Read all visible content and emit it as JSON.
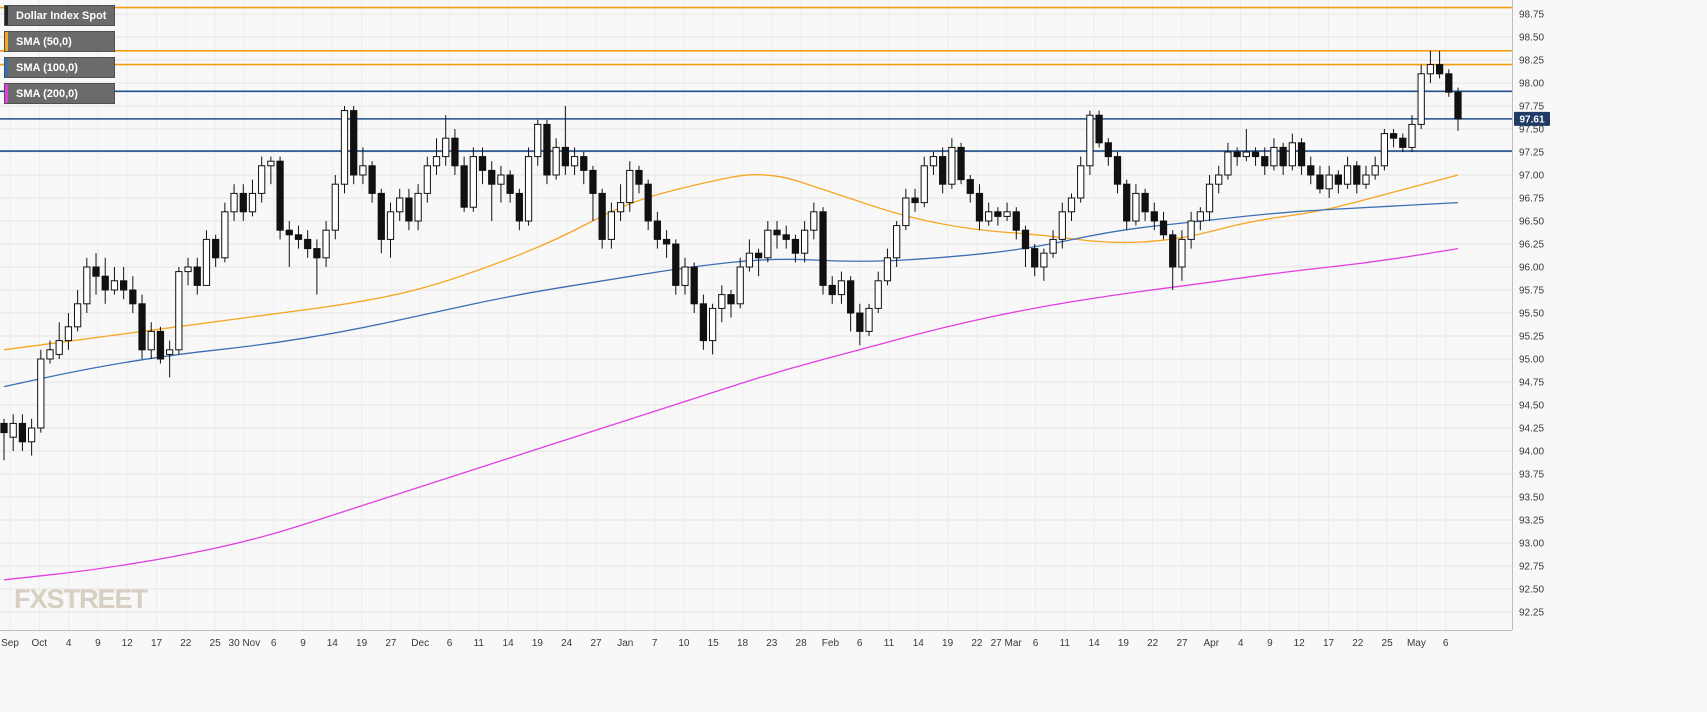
{
  "legend": {
    "items": [
      {
        "label": "Dollar Index Spot",
        "color": "#222222"
      },
      {
        "label": "SMA (50,0)",
        "color": "#f5a623"
      },
      {
        "label": "SMA (100,0)",
        "color": "#3b6fb5"
      },
      {
        "label": "SMA (200,0)",
        "color": "#e040e0"
      }
    ]
  },
  "watermark": "FXSTREET",
  "chart_data": {
    "type": "candlestick",
    "ylim": [
      92.0,
      98.9
    ],
    "y_ticks": [
      92.25,
      92.5,
      92.75,
      93.0,
      93.25,
      93.5,
      93.75,
      94.0,
      94.25,
      94.5,
      94.75,
      95.0,
      95.25,
      95.5,
      95.75,
      96.0,
      96.25,
      96.5,
      96.75,
      97.0,
      97.25,
      97.5,
      97.75,
      98.0,
      98.25,
      98.5,
      98.75
    ],
    "x_tick_labels": [
      "Sep",
      "Oct",
      "4",
      "9",
      "12",
      "17",
      "22",
      "25",
      "30 Nov",
      "6",
      "9",
      "14",
      "19",
      "27",
      "Dec",
      "6",
      "11",
      "14",
      "19",
      "24",
      "27",
      "Jan",
      "7",
      "10",
      "15",
      "18",
      "23",
      "28",
      "Feb",
      "6",
      "11",
      "14",
      "19",
      "22",
      "27 Mar",
      "6",
      "11",
      "14",
      "19",
      "22",
      "27",
      "Apr",
      "4",
      "9",
      "12",
      "17",
      "22",
      "25",
      "May",
      "6"
    ],
    "current_price": "97.61",
    "horizontal_levels": [
      {
        "value": 98.82,
        "color": "#f39c12"
      },
      {
        "value": 98.35,
        "color": "#f39c12"
      },
      {
        "value": 98.2,
        "color": "#f39c12"
      },
      {
        "value": 97.91,
        "color": "#1f4e8c"
      },
      {
        "value": 97.61,
        "color": "#1f4e8c"
      },
      {
        "value": 97.26,
        "color": "#1f4e8c"
      }
    ],
    "sma50": [
      95.1,
      95.2,
      95.3,
      95.4,
      95.5,
      95.6,
      95.75,
      96.0,
      96.3,
      96.7,
      96.9,
      97.05,
      96.8,
      96.55,
      96.4,
      96.35,
      96.25,
      96.3,
      96.5,
      96.6,
      96.8,
      97.0
    ],
    "sma100": [
      94.7,
      94.9,
      95.05,
      95.15,
      95.3,
      95.5,
      95.7,
      95.85,
      96.0,
      96.1,
      96.05,
      96.1,
      96.2,
      96.4,
      96.5,
      96.6,
      96.65,
      96.7
    ],
    "sma200": [
      92.6,
      92.7,
      92.85,
      93.05,
      93.35,
      93.65,
      93.95,
      94.25,
      94.55,
      94.85,
      95.1,
      95.35,
      95.55,
      95.7,
      95.82,
      95.95,
      96.05,
      96.2
    ],
    "candles": [
      [
        94.3,
        94.2,
        94.35,
        93.9
      ],
      [
        94.15,
        94.3,
        94.4,
        94.0
      ],
      [
        94.3,
        94.1,
        94.4,
        94.0
      ],
      [
        94.1,
        94.25,
        94.35,
        93.95
      ],
      [
        94.25,
        95.0,
        95.1,
        94.2
      ],
      [
        95.0,
        95.1,
        95.2,
        94.95
      ],
      [
        95.05,
        95.2,
        95.4,
        95.0
      ],
      [
        95.2,
        95.35,
        95.5,
        95.1
      ],
      [
        95.35,
        95.6,
        95.75,
        95.3
      ],
      [
        95.6,
        96.0,
        96.1,
        95.5
      ],
      [
        96.0,
        95.9,
        96.15,
        95.7
      ],
      [
        95.9,
        95.75,
        96.1,
        95.6
      ],
      [
        95.75,
        95.85,
        96.0,
        95.7
      ],
      [
        95.85,
        95.75,
        96.0,
        95.65
      ],
      [
        95.75,
        95.6,
        95.9,
        95.5
      ],
      [
        95.6,
        95.1,
        95.7,
        95.0
      ],
      [
        95.1,
        95.3,
        95.4,
        95.0
      ],
      [
        95.3,
        95.0,
        95.35,
        94.95
      ],
      [
        95.05,
        95.1,
        95.2,
        94.8
      ],
      [
        95.1,
        95.95,
        96.0,
        95.05
      ],
      [
        95.95,
        96.0,
        96.1,
        95.8
      ],
      [
        96.0,
        95.8,
        96.1,
        95.7
      ],
      [
        95.8,
        96.3,
        96.4,
        95.8
      ],
      [
        96.3,
        96.1,
        96.35,
        96.0
      ],
      [
        96.1,
        96.6,
        96.7,
        96.05
      ],
      [
        96.6,
        96.8,
        96.9,
        96.5
      ],
      [
        96.8,
        96.6,
        96.9,
        96.5
      ],
      [
        96.6,
        96.8,
        96.95,
        96.55
      ],
      [
        96.8,
        97.1,
        97.2,
        96.7
      ],
      [
        97.1,
        97.15,
        97.2,
        96.9
      ],
      [
        97.15,
        96.4,
        97.2,
        96.3
      ],
      [
        96.4,
        96.35,
        96.5,
        96.0
      ],
      [
        96.35,
        96.3,
        96.45,
        96.2
      ],
      [
        96.3,
        96.2,
        96.4,
        96.1
      ],
      [
        96.2,
        96.1,
        96.3,
        95.7
      ],
      [
        96.1,
        96.4,
        96.5,
        96.0
      ],
      [
        96.4,
        96.9,
        97.0,
        96.3
      ],
      [
        96.9,
        97.7,
        97.75,
        96.8
      ],
      [
        97.7,
        97.0,
        97.75,
        96.9
      ],
      [
        97.0,
        97.1,
        97.3,
        96.9
      ],
      [
        97.1,
        96.8,
        97.15,
        96.7
      ],
      [
        96.8,
        96.3,
        96.85,
        96.15
      ],
      [
        96.3,
        96.6,
        96.7,
        96.1
      ],
      [
        96.6,
        96.75,
        96.85,
        96.5
      ],
      [
        96.75,
        96.5,
        96.85,
        96.4
      ],
      [
        96.5,
        96.8,
        96.9,
        96.4
      ],
      [
        96.8,
        97.1,
        97.2,
        96.7
      ],
      [
        97.1,
        97.2,
        97.4,
        97.0
      ],
      [
        97.2,
        97.4,
        97.65,
        97.1
      ],
      [
        97.4,
        97.1,
        97.5,
        97.0
      ],
      [
        97.1,
        96.65,
        97.2,
        96.6
      ],
      [
        96.65,
        97.2,
        97.3,
        96.6
      ],
      [
        97.2,
        97.05,
        97.3,
        96.9
      ],
      [
        97.05,
        96.9,
        97.15,
        96.5
      ],
      [
        96.9,
        97.0,
        97.1,
        96.7
      ],
      [
        97.0,
        96.8,
        97.05,
        96.7
      ],
      [
        96.8,
        96.5,
        96.85,
        96.4
      ],
      [
        96.5,
        97.2,
        97.3,
        96.45
      ],
      [
        97.2,
        97.55,
        97.6,
        97.1
      ],
      [
        97.55,
        97.0,
        97.6,
        96.9
      ],
      [
        97.0,
        97.3,
        97.4,
        96.95
      ],
      [
        97.3,
        97.1,
        97.75,
        97.0
      ],
      [
        97.1,
        97.2,
        97.3,
        97.0
      ],
      [
        97.2,
        97.05,
        97.25,
        96.9
      ],
      [
        97.05,
        96.8,
        97.1,
        96.5
      ],
      [
        96.8,
        96.3,
        96.85,
        96.2
      ],
      [
        96.3,
        96.6,
        96.7,
        96.2
      ],
      [
        96.6,
        96.7,
        96.9,
        96.5
      ],
      [
        96.7,
        97.05,
        97.15,
        96.6
      ],
      [
        97.05,
        96.9,
        97.1,
        96.8
      ],
      [
        96.9,
        96.5,
        96.95,
        96.4
      ],
      [
        96.5,
        96.3,
        96.6,
        96.2
      ],
      [
        96.3,
        96.25,
        96.4,
        96.1
      ],
      [
        96.25,
        95.8,
        96.3,
        95.7
      ],
      [
        95.8,
        96.0,
        96.1,
        95.7
      ],
      [
        96.0,
        95.6,
        96.05,
        95.5
      ],
      [
        95.6,
        95.2,
        95.7,
        95.1
      ],
      [
        95.2,
        95.55,
        95.6,
        95.05
      ],
      [
        95.55,
        95.7,
        95.8,
        95.4
      ],
      [
        95.7,
        95.6,
        95.75,
        95.45
      ],
      [
        95.6,
        96.0,
        96.1,
        95.55
      ],
      [
        96.0,
        96.15,
        96.3,
        95.95
      ],
      [
        96.15,
        96.1,
        96.2,
        95.9
      ],
      [
        96.1,
        96.4,
        96.5,
        96.05
      ],
      [
        96.4,
        96.35,
        96.5,
        96.2
      ],
      [
        96.35,
        96.3,
        96.45,
        96.2
      ],
      [
        96.3,
        96.15,
        96.35,
        96.05
      ],
      [
        96.15,
        96.4,
        96.5,
        96.05
      ],
      [
        96.4,
        96.6,
        96.7,
        96.3
      ],
      [
        96.6,
        95.8,
        96.65,
        95.7
      ],
      [
        95.8,
        95.7,
        95.9,
        95.6
      ],
      [
        95.7,
        95.85,
        95.95,
        95.6
      ],
      [
        95.85,
        95.5,
        95.9,
        95.3
      ],
      [
        95.5,
        95.3,
        95.6,
        95.15
      ],
      [
        95.3,
        95.55,
        95.6,
        95.25
      ],
      [
        95.55,
        95.85,
        95.95,
        95.5
      ],
      [
        95.85,
        96.1,
        96.2,
        95.8
      ],
      [
        96.1,
        96.45,
        96.5,
        96.0
      ],
      [
        96.45,
        96.75,
        96.85,
        96.4
      ],
      [
        96.75,
        96.7,
        96.85,
        96.6
      ],
      [
        96.7,
        97.1,
        97.2,
        96.65
      ],
      [
        97.1,
        97.2,
        97.25,
        97.0
      ],
      [
        97.2,
        96.9,
        97.3,
        96.8
      ],
      [
        96.9,
        97.3,
        97.4,
        96.85
      ],
      [
        97.3,
        96.95,
        97.35,
        96.9
      ],
      [
        96.95,
        96.8,
        97.0,
        96.7
      ],
      [
        96.8,
        96.5,
        96.9,
        96.4
      ],
      [
        96.5,
        96.6,
        96.7,
        96.45
      ],
      [
        96.6,
        96.55,
        96.65,
        96.45
      ],
      [
        96.55,
        96.6,
        96.7,
        96.5
      ],
      [
        96.6,
        96.4,
        96.65,
        96.3
      ],
      [
        96.4,
        96.2,
        96.45,
        96.0
      ],
      [
        96.2,
        96.0,
        96.25,
        95.9
      ],
      [
        96.0,
        96.15,
        96.2,
        95.85
      ],
      [
        96.15,
        96.3,
        96.4,
        96.1
      ],
      [
        96.3,
        96.6,
        96.7,
        96.2
      ],
      [
        96.6,
        96.75,
        96.8,
        96.5
      ],
      [
        96.75,
        97.1,
        97.2,
        96.7
      ],
      [
        97.1,
        97.65,
        97.7,
        97.0
      ],
      [
        97.65,
        97.35,
        97.7,
        97.3
      ],
      [
        97.35,
        97.2,
        97.4,
        97.1
      ],
      [
        97.2,
        96.9,
        97.25,
        96.8
      ],
      [
        96.9,
        96.5,
        96.95,
        96.4
      ],
      [
        96.5,
        96.8,
        96.9,
        96.45
      ],
      [
        96.8,
        96.6,
        96.85,
        96.5
      ],
      [
        96.6,
        96.5,
        96.7,
        96.4
      ],
      [
        96.5,
        96.35,
        96.6,
        96.3
      ],
      [
        96.35,
        96.0,
        96.4,
        95.75
      ],
      [
        96.0,
        96.3,
        96.4,
        95.85
      ],
      [
        96.3,
        96.5,
        96.6,
        96.2
      ],
      [
        96.5,
        96.6,
        96.65,
        96.4
      ],
      [
        96.6,
        96.9,
        97.0,
        96.5
      ],
      [
        96.9,
        97.0,
        97.1,
        96.8
      ],
      [
        97.0,
        97.25,
        97.35,
        96.95
      ],
      [
        97.25,
        97.2,
        97.3,
        97.1
      ],
      [
        97.2,
        97.25,
        97.5,
        97.15
      ],
      [
        97.25,
        97.2,
        97.3,
        97.1
      ],
      [
        97.2,
        97.1,
        97.3,
        97.0
      ],
      [
        97.1,
        97.3,
        97.4,
        97.05
      ],
      [
        97.3,
        97.1,
        97.35,
        97.0
      ],
      [
        97.1,
        97.35,
        97.45,
        97.05
      ],
      [
        97.35,
        97.1,
        97.4,
        97.0
      ],
      [
        97.1,
        97.0,
        97.2,
        96.9
      ],
      [
        97.0,
        96.85,
        97.1,
        96.8
      ],
      [
        96.85,
        97.0,
        97.1,
        96.75
      ],
      [
        97.0,
        96.9,
        97.05,
        96.8
      ],
      [
        96.9,
        97.1,
        97.2,
        96.85
      ],
      [
        97.1,
        96.9,
        97.15,
        96.8
      ],
      [
        96.9,
        97.0,
        97.1,
        96.85
      ],
      [
        97.0,
        97.1,
        97.2,
        96.95
      ],
      [
        97.1,
        97.45,
        97.5,
        97.05
      ],
      [
        97.45,
        97.4,
        97.5,
        97.3
      ],
      [
        97.4,
        97.3,
        97.45,
        97.25
      ],
      [
        97.3,
        97.55,
        97.65,
        97.25
      ],
      [
        97.55,
        98.1,
        98.2,
        97.5
      ],
      [
        98.1,
        98.2,
        98.35,
        98.0
      ],
      [
        98.2,
        98.1,
        98.35,
        98.05
      ],
      [
        98.1,
        97.9,
        98.15,
        97.85
      ],
      [
        97.9,
        97.61,
        97.95,
        97.48
      ]
    ]
  }
}
